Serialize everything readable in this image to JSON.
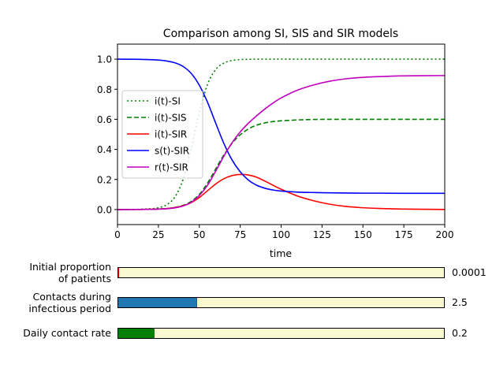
{
  "chart_data": {
    "type": "line",
    "title": "Comparison among SI, SIS and SIR models",
    "xlabel": "time",
    "ylabel": "",
    "xlim": [
      0,
      200
    ],
    "ylim": [
      -0.1,
      1.1
    ],
    "xticks": [
      "0",
      "25",
      "50",
      "75",
      "100",
      "125",
      "150",
      "175",
      "200"
    ],
    "yticks": [
      "0.0",
      "0.2",
      "0.4",
      "0.6",
      "0.8",
      "1.0"
    ],
    "legend_position": "center-left",
    "grid": false,
    "x": [
      0,
      10,
      20,
      25,
      30,
      35,
      40,
      45,
      50,
      55,
      60,
      65,
      70,
      75,
      80,
      85,
      90,
      95,
      100,
      110,
      120,
      130,
      140,
      150,
      160,
      175,
      200
    ],
    "series": [
      {
        "name": "i(t)-SI",
        "color": "#008000",
        "style": "dotted",
        "values": [
          0.0001,
          0.0007,
          0.005,
          0.012,
          0.032,
          0.082,
          0.197,
          0.401,
          0.646,
          0.832,
          0.931,
          0.974,
          0.991,
          0.997,
          0.999,
          1.0,
          1.0,
          1.0,
          1.0,
          1.0,
          1.0,
          1.0,
          1.0,
          1.0,
          1.0,
          1.0,
          1.0
        ]
      },
      {
        "name": "i(t)-SIS",
        "color": "#008000",
        "style": "dashed",
        "values": [
          0.0001,
          0.0004,
          0.0017,
          0.0034,
          0.0069,
          0.014,
          0.028,
          0.054,
          0.101,
          0.175,
          0.27,
          0.363,
          0.44,
          0.497,
          0.536,
          0.561,
          0.576,
          0.585,
          0.59,
          0.596,
          0.599,
          0.6,
          0.6,
          0.6,
          0.6,
          0.6,
          0.6
        ]
      },
      {
        "name": "i(t)-SIR",
        "color": "#ff0000",
        "style": "solid",
        "values": [
          0.0001,
          0.0004,
          0.0017,
          0.0033,
          0.0066,
          0.013,
          0.025,
          0.046,
          0.08,
          0.125,
          0.17,
          0.205,
          0.226,
          0.233,
          0.23,
          0.215,
          0.19,
          0.162,
          0.135,
          0.09,
          0.058,
          0.035,
          0.02,
          0.012,
          0.007,
          0.003,
          0.0005
        ]
      },
      {
        "name": "s(t)-SIR",
        "color": "#0000ff",
        "style": "solid",
        "values": [
          0.9999,
          0.9993,
          0.997,
          0.994,
          0.988,
          0.976,
          0.952,
          0.906,
          0.827,
          0.714,
          0.575,
          0.44,
          0.33,
          0.251,
          0.196,
          0.162,
          0.142,
          0.13,
          0.123,
          0.116,
          0.113,
          0.111,
          0.11,
          0.109,
          0.109,
          0.108,
          0.108
        ]
      },
      {
        "name": "r(t)-SIR",
        "color": "#bf00bf",
        "style": "solid",
        "values": [
          0.0,
          0.0003,
          0.0013,
          0.0027,
          0.0054,
          0.011,
          0.023,
          0.048,
          0.093,
          0.161,
          0.255,
          0.355,
          0.444,
          0.516,
          0.574,
          0.623,
          0.668,
          0.708,
          0.742,
          0.794,
          0.829,
          0.854,
          0.87,
          0.879,
          0.884,
          0.889,
          0.891
        ]
      }
    ]
  },
  "sliders": [
    {
      "label_line1": "Initial proportion",
      "label_line2": "of patients",
      "value_text": "0.0001",
      "fraction": 0.0,
      "fill_color": "#1f77b4"
    },
    {
      "label_line1": "Contacts during",
      "label_line2": "infectious period",
      "value_text": "2.5",
      "fraction": 0.24,
      "fill_color": "#1f77b4"
    },
    {
      "label_line1": "Daily contact rate",
      "label_line2": "",
      "value_text": "0.2",
      "fraction": 0.11,
      "fill_color": "#008000"
    }
  ]
}
